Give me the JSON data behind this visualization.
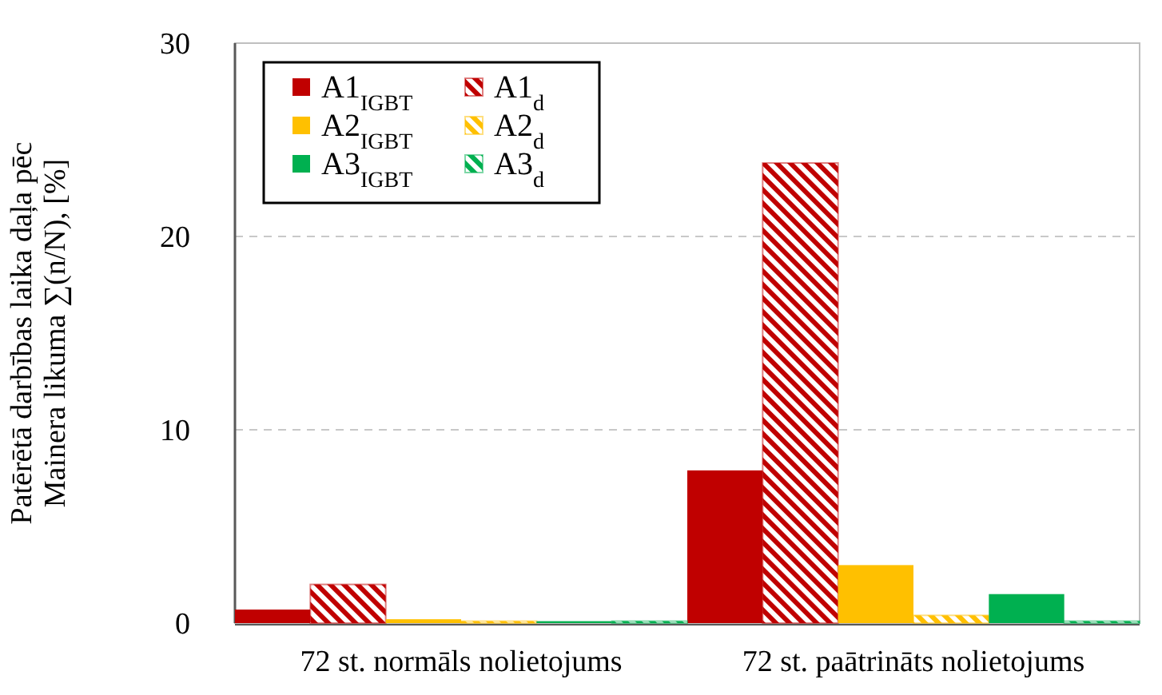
{
  "chart_data": {
    "type": "bar",
    "ylabel": "Patērētā darbības laika daļa pēc\nMainera likuma ∑(n/N), [%]",
    "categories": [
      "72 st. normāls nolietojums",
      "72 st. paātrināts nolietojums"
    ],
    "series": [
      {
        "name": "A1$_{IGBT}$",
        "color": "#c00000",
        "values": [
          0.7,
          7.9
        ]
      },
      {
        "name": "A1$_{d}$",
        "color": "#c00000",
        "values": [
          2.0,
          23.8
        ]
      },
      {
        "name": "A2$_{IGBT}$",
        "color": "#ffc000",
        "values": [
          0.2,
          3.0
        ]
      },
      {
        "name": "A2$_{d}$",
        "color": "#ffc000",
        "values": [
          0.1,
          0.4
        ]
      },
      {
        "name": "A3$_{IGBT}$",
        "color": "#00b050",
        "values": [
          0.1,
          1.5
        ]
      },
      {
        "name": "A3$_{d}$",
        "color": "#00b050",
        "values": [
          0.1,
          0.1
        ]
      }
    ],
    "ylim": [
      0,
      30
    ],
    "yticks": [
      0,
      10,
      20,
      30
    ],
    "grid": "y",
    "legend": "top left"
  }
}
